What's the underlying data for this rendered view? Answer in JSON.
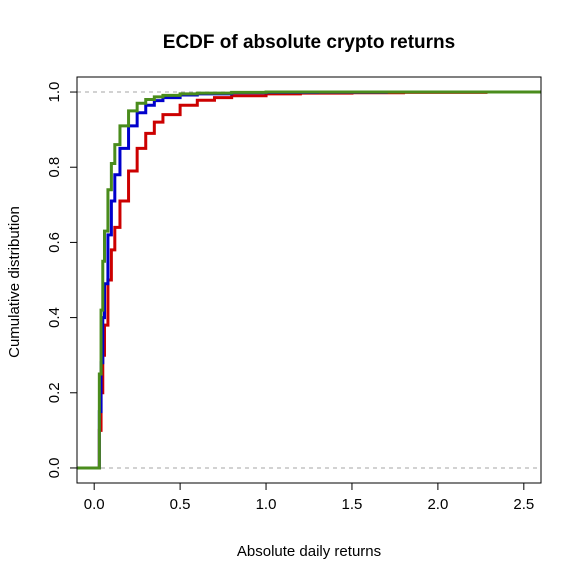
{
  "chart_data": {
    "type": "line",
    "title": "ECDF of absolute crypto returns",
    "xlabel": "Absolute daily returns",
    "ylabel": "Cumulative distribution",
    "xlim": [
      -0.1,
      2.6
    ],
    "ylim": [
      -0.04,
      1.04
    ],
    "x_ticks": [
      0.0,
      0.5,
      1.0,
      1.5,
      2.0,
      2.5
    ],
    "x_tick_labels": [
      "0.0",
      "0.5",
      "1.0",
      "1.5",
      "2.0",
      "2.5"
    ],
    "y_ticks": [
      0.0,
      0.2,
      0.4,
      0.6,
      0.8,
      1.0
    ],
    "y_tick_labels": [
      "0.0",
      "0.2",
      "0.4",
      "0.6",
      "0.8",
      "1.0"
    ],
    "reference_lines": [
      0,
      1
    ],
    "grid": false,
    "series": [
      {
        "color": "#cc0000",
        "x": [
          -0.1,
          0.0,
          0.02,
          0.03,
          0.04,
          0.05,
          0.06,
          0.08,
          0.1,
          0.12,
          0.15,
          0.2,
          0.25,
          0.3,
          0.35,
          0.4,
          0.5,
          0.6,
          0.7,
          0.8,
          1.0,
          1.2,
          1.5,
          1.8,
          2.28
        ],
        "y": [
          0.0,
          0.0,
          0.0,
          0.1,
          0.2,
          0.3,
          0.38,
          0.5,
          0.58,
          0.64,
          0.71,
          0.79,
          0.85,
          0.89,
          0.92,
          0.94,
          0.965,
          0.978,
          0.985,
          0.99,
          0.995,
          0.997,
          0.998,
          0.999,
          1.0
        ]
      },
      {
        "color": "#0000cc",
        "x": [
          -0.1,
          0.0,
          0.02,
          0.03,
          0.04,
          0.05,
          0.06,
          0.08,
          0.1,
          0.12,
          0.15,
          0.2,
          0.25,
          0.3,
          0.35,
          0.4,
          0.5,
          0.6,
          0.8,
          1.0,
          1.3,
          1.7,
          2.6
        ],
        "y": [
          0.0,
          0.0,
          0.0,
          0.15,
          0.28,
          0.4,
          0.49,
          0.62,
          0.71,
          0.78,
          0.85,
          0.91,
          0.945,
          0.965,
          0.977,
          0.985,
          0.992,
          0.995,
          0.998,
          0.999,
          0.9995,
          1.0,
          1.0
        ]
      },
      {
        "color": "#4a8c1c",
        "x": [
          -0.1,
          0.0,
          0.02,
          0.03,
          0.04,
          0.05,
          0.06,
          0.08,
          0.1,
          0.12,
          0.15,
          0.2,
          0.25,
          0.3,
          0.35,
          0.4,
          0.5,
          0.6,
          0.8,
          1.0,
          1.5,
          2.0,
          2.6
        ],
        "y": [
          0.0,
          0.0,
          0.0,
          0.25,
          0.42,
          0.55,
          0.63,
          0.74,
          0.81,
          0.86,
          0.91,
          0.95,
          0.97,
          0.98,
          0.987,
          0.991,
          0.995,
          0.997,
          0.999,
          1.0,
          1.0,
          1.0,
          1.0
        ]
      }
    ]
  }
}
